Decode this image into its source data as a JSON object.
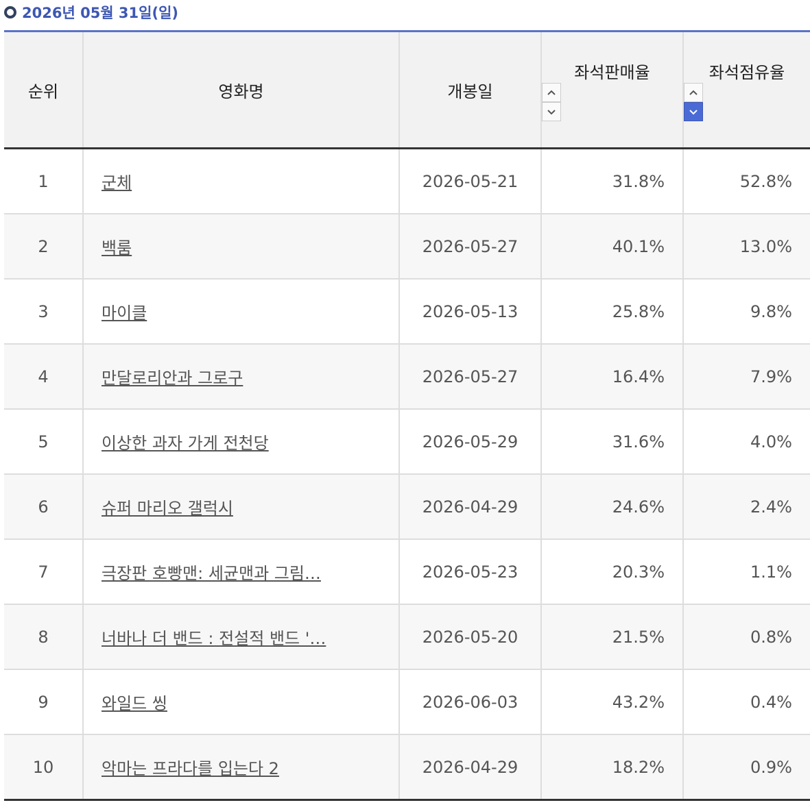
{
  "header": {
    "title": "2026년 05월 31일(일)"
  },
  "table": {
    "columns": [
      "순위",
      "영화명",
      "개봉일",
      "좌석판매율",
      "좌석점유율"
    ],
    "rows": [
      [
        "1",
        "군체",
        "2026-05-21",
        "31.8%",
        "52.8%"
      ],
      [
        "2",
        "백룸",
        "2026-05-27",
        "40.1%",
        "13.0%"
      ],
      [
        "3",
        "마이클",
        "2026-05-13",
        "25.8%",
        "9.8%"
      ],
      [
        "4",
        "만달로리안과 그로구",
        "2026-05-27",
        "16.4%",
        "7.9%"
      ],
      [
        "5",
        "이상한 과자 가게 전천당",
        "2026-05-29",
        "31.6%",
        "4.0%"
      ],
      [
        "6",
        "슈퍼 마리오 갤럭시",
        "2026-04-29",
        "24.6%",
        "2.4%"
      ],
      [
        "7",
        "극장판 호빵맨: 세균맨과 그림…",
        "2026-05-23",
        "20.3%",
        "1.1%"
      ],
      [
        "8",
        "너바나 더 밴드 : 전설적 밴드 '…",
        "2026-05-20",
        "21.5%",
        "0.8%"
      ],
      [
        "9",
        "와일드 씽",
        "2026-06-03",
        "43.2%",
        "0.4%"
      ],
      [
        "10",
        "악마는 프라다를 입는다 2",
        "2026-04-29",
        "18.2%",
        "0.9%"
      ]
    ]
  }
}
